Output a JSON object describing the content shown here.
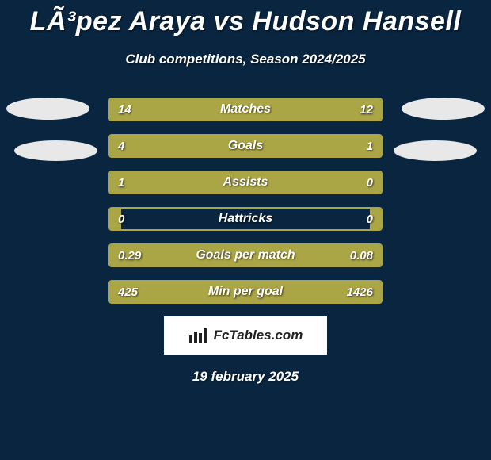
{
  "colors": {
    "background": "#0a2540",
    "bar_fill": "#aaa545",
    "bar_border": "#aaa545",
    "text": "#ffffff",
    "logo_bg": "#ffffff",
    "logo_text": "#222222",
    "ellipse": "#e8e8e8"
  },
  "header": {
    "title": "LÃ³pez Araya vs Hudson Hansell",
    "subtitle": "Club competitions, Season 2024/2025"
  },
  "stats": [
    {
      "label": "Matches",
      "left_val": "14",
      "right_val": "12",
      "left_pct": 42,
      "right_pct": 58
    },
    {
      "label": "Goals",
      "left_val": "4",
      "right_val": "1",
      "left_pct": 77,
      "right_pct": 23
    },
    {
      "label": "Assists",
      "left_val": "1",
      "right_val": "0",
      "left_pct": 80,
      "right_pct": 20
    },
    {
      "label": "Hattricks",
      "left_val": "0",
      "right_val": "0",
      "left_pct": 4,
      "right_pct": 4
    },
    {
      "label": "Goals per match",
      "left_val": "0.29",
      "right_val": "0.08",
      "left_pct": 100,
      "right_pct": 100
    },
    {
      "label": "Min per goal",
      "left_val": "425",
      "right_val": "1426",
      "left_pct": 100,
      "right_pct": 100
    }
  ],
  "logo": {
    "text": "FcTables.com"
  },
  "footer": {
    "date": "19 february 2025"
  }
}
